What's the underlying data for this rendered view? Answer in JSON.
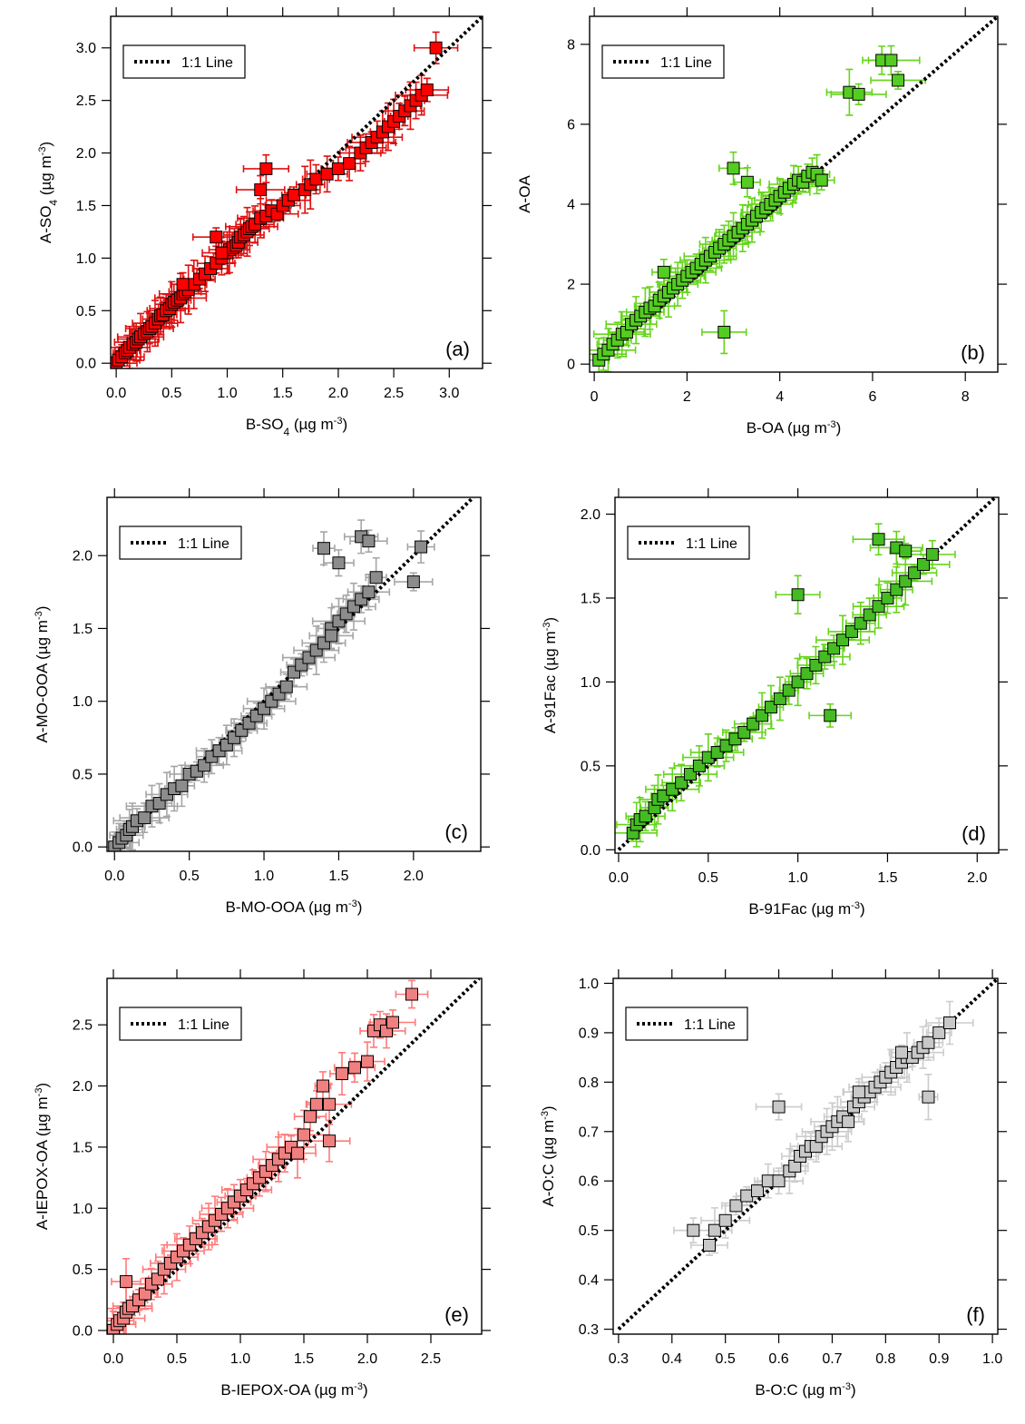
{
  "figure": {
    "legend_label": "1:1 Line"
  },
  "chart_data": [
    {
      "type": "scatter",
      "panel": "(a)",
      "xlabel": "B-SO4 (µg m-3)",
      "ylabel": "A-SO4 (µg m-3)",
      "xlabel_parts": {
        "prefix": "B-SO",
        "sub": "4",
        "unit": " (µg m",
        "sup": "-3",
        "close": ")"
      },
      "ylabel_parts": {
        "prefix": "A-SO",
        "sub": "4",
        "unit": " (µg m",
        "sup": "-3",
        "close": ")"
      },
      "xlim": [
        -0.05,
        3.3
      ],
      "ylim": [
        -0.05,
        3.3
      ],
      "xticks": [
        0.0,
        0.5,
        1.0,
        1.5,
        2.0,
        2.5,
        3.0
      ],
      "yticks": [
        0.0,
        0.5,
        1.0,
        1.5,
        2.0,
        2.5,
        3.0
      ],
      "tick_decimals": 1,
      "color": "#ff0000",
      "errcolor": "#e01010",
      "legend": "top-left",
      "grid": false,
      "x": [
        0.0,
        0.02,
        0.05,
        0.08,
        0.1,
        0.12,
        0.15,
        0.18,
        0.2,
        0.22,
        0.25,
        0.28,
        0.3,
        0.32,
        0.35,
        0.38,
        0.4,
        0.42,
        0.45,
        0.48,
        0.5,
        0.52,
        0.55,
        0.58,
        0.6,
        0.62,
        0.65,
        0.7,
        0.75,
        0.8,
        0.85,
        0.9,
        0.95,
        1.0,
        1.02,
        1.05,
        1.08,
        1.1,
        1.12,
        1.15,
        1.18,
        1.2,
        1.22,
        1.25,
        1.3,
        1.35,
        1.4,
        1.45,
        1.5,
        1.55,
        1.6,
        1.7,
        1.75,
        1.8,
        1.9,
        2.0,
        2.1,
        2.2,
        2.25,
        2.3,
        2.35,
        2.4,
        2.45,
        2.5,
        2.55,
        2.6,
        2.65,
        2.7,
        2.75,
        2.8,
        1.35,
        1.3,
        0.6,
        0.9,
        0.95,
        2.88
      ],
      "y": [
        0.0,
        0.03,
        0.06,
        0.1,
        0.12,
        0.15,
        0.18,
        0.2,
        0.23,
        0.25,
        0.28,
        0.3,
        0.33,
        0.35,
        0.38,
        0.42,
        0.45,
        0.46,
        0.5,
        0.52,
        0.56,
        0.58,
        0.6,
        0.62,
        0.66,
        0.68,
        0.7,
        0.75,
        0.8,
        0.85,
        0.9,
        0.95,
        1.0,
        1.05,
        1.08,
        1.1,
        1.12,
        1.15,
        1.2,
        1.22,
        1.25,
        1.28,
        1.3,
        1.32,
        1.38,
        1.4,
        1.45,
        1.42,
        1.5,
        1.55,
        1.6,
        1.65,
        1.7,
        1.75,
        1.8,
        1.85,
        1.9,
        2.0,
        2.05,
        2.1,
        2.15,
        2.2,
        2.25,
        2.3,
        2.35,
        2.4,
        2.45,
        2.5,
        2.55,
        2.6,
        1.85,
        1.65,
        0.75,
        1.2,
        1.05,
        3.0
      ]
    },
    {
      "type": "scatter",
      "panel": "(b)",
      "xlabel": "B-OA (µg m-3)",
      "ylabel": "A-OA",
      "xlabel_parts": {
        "prefix": "B-OA",
        "sub": "",
        "unit": " (µg m",
        "sup": "-3",
        "close": ")"
      },
      "ylabel_parts": {
        "prefix": "A-OA",
        "sub": "",
        "unit": "",
        "sup": "",
        "close": ""
      },
      "xlim": [
        -0.1,
        8.7
      ],
      "ylim": [
        -0.2,
        8.7
      ],
      "xticks": [
        0,
        2,
        4,
        6,
        8
      ],
      "yticks": [
        0,
        2,
        4,
        6,
        8
      ],
      "tick_decimals": 0,
      "color": "#55cc22",
      "errcolor": "#66d41c",
      "legend": "top-left",
      "grid": false,
      "x": [
        0.1,
        0.2,
        0.3,
        0.4,
        0.5,
        0.6,
        0.7,
        0.8,
        0.9,
        1.0,
        1.1,
        1.2,
        1.3,
        1.4,
        1.5,
        1.6,
        1.7,
        1.8,
        1.9,
        2.0,
        2.1,
        2.2,
        2.3,
        2.4,
        2.5,
        2.6,
        2.7,
        2.8,
        2.9,
        3.0,
        3.1,
        3.2,
        3.3,
        3.4,
        3.5,
        3.6,
        3.7,
        3.8,
        3.9,
        4.0,
        4.1,
        4.2,
        4.3,
        4.4,
        4.5,
        4.6,
        4.7,
        4.8,
        4.9,
        3.0,
        3.3,
        2.8,
        1.5,
        5.5,
        5.7,
        6.2,
        6.4,
        6.55
      ],
      "y": [
        0.1,
        0.25,
        0.35,
        0.5,
        0.6,
        0.75,
        0.8,
        1.0,
        1.1,
        1.2,
        1.3,
        1.4,
        1.45,
        1.6,
        1.7,
        1.8,
        1.9,
        2.0,
        2.1,
        2.2,
        2.3,
        2.4,
        2.5,
        2.6,
        2.7,
        2.8,
        2.9,
        3.0,
        3.1,
        3.2,
        3.3,
        3.4,
        3.5,
        3.6,
        3.7,
        3.8,
        3.9,
        4.0,
        4.1,
        4.2,
        4.3,
        4.4,
        4.5,
        4.6,
        4.55,
        4.7,
        4.8,
        4.75,
        4.6,
        4.9,
        4.55,
        0.8,
        2.3,
        6.8,
        6.75,
        7.6,
        7.6,
        7.1
      ]
    },
    {
      "type": "scatter",
      "panel": "(c)",
      "xlabel": "B-MO-OOA (µg m-3)",
      "ylabel": "A-MO-OOA (µg m-3)",
      "xlabel_parts": {
        "prefix": "B-MO-OOA",
        "sub": "",
        "unit": " (µg m",
        "sup": "-3",
        "close": ")"
      },
      "ylabel_parts": {
        "prefix": "A-MO-OOA",
        "sub": "",
        "unit": " (µg m",
        "sup": "-3",
        "close": ")"
      },
      "xlim": [
        -0.05,
        2.45
      ],
      "ylim": [
        -0.03,
        2.4
      ],
      "xticks": [
        0.0,
        0.5,
        1.0,
        1.5,
        2.0
      ],
      "yticks": [
        0.0,
        0.5,
        1.0,
        1.5,
        2.0
      ],
      "tick_decimals": 1,
      "color": "#8c8c8c",
      "errcolor": "#a6a6a6",
      "legend": "top-left",
      "grid": false,
      "x": [
        0.0,
        0.03,
        0.05,
        0.08,
        0.1,
        0.12,
        0.15,
        0.2,
        0.25,
        0.3,
        0.35,
        0.4,
        0.45,
        0.5,
        0.55,
        0.6,
        0.65,
        0.7,
        0.75,
        0.8,
        0.85,
        0.9,
        0.95,
        1.0,
        1.05,
        1.1,
        1.15,
        1.2,
        1.25,
        1.3,
        1.35,
        1.4,
        1.45,
        1.5,
        1.55,
        1.6,
        1.65,
        1.7,
        1.75,
        1.4,
        1.5,
        1.65,
        1.7,
        2.0,
        2.05,
        1.45
      ],
      "y": [
        0.0,
        0.03,
        0.06,
        0.08,
        0.12,
        0.14,
        0.18,
        0.2,
        0.28,
        0.3,
        0.36,
        0.4,
        0.42,
        0.5,
        0.52,
        0.56,
        0.62,
        0.66,
        0.7,
        0.75,
        0.8,
        0.85,
        0.9,
        0.95,
        1.0,
        1.05,
        1.1,
        1.2,
        1.25,
        1.3,
        1.35,
        1.4,
        1.5,
        1.55,
        1.6,
        1.65,
        1.7,
        1.75,
        1.85,
        2.05,
        1.95,
        2.13,
        2.1,
        1.82,
        2.06,
        1.45
      ]
    },
    {
      "type": "scatter",
      "panel": "(d)",
      "xlabel": "B-91Fac (µg m-3)",
      "ylabel": "A-91Fac (µg m-3)",
      "xlabel_parts": {
        "prefix": "B-91Fac",
        "sub": "",
        "unit": " (µg m",
        "sup": "-3",
        "close": ")"
      },
      "ylabel_parts": {
        "prefix": "A-91Fac",
        "sub": "",
        "unit": " (µg m",
        "sup": "-3",
        "close": ")"
      },
      "xlim": [
        -0.02,
        2.12
      ],
      "ylim": [
        -0.02,
        2.1
      ],
      "xticks": [
        0.0,
        0.5,
        1.0,
        1.5,
        2.0
      ],
      "yticks": [
        0.0,
        0.5,
        1.0,
        1.5,
        2.0
      ],
      "tick_decimals": 1,
      "color": "#44bb22",
      "errcolor": "#66d41c",
      "legend": "top-left",
      "grid": false,
      "x": [
        0.08,
        0.1,
        0.12,
        0.15,
        0.2,
        0.22,
        0.25,
        0.3,
        0.35,
        0.4,
        0.45,
        0.5,
        0.55,
        0.6,
        0.65,
        0.7,
        0.75,
        0.8,
        0.85,
        0.9,
        0.95,
        1.0,
        1.05,
        1.1,
        1.15,
        1.2,
        1.25,
        1.3,
        1.35,
        1.4,
        1.45,
        1.5,
        1.55,
        1.6,
        1.65,
        1.7,
        1.75,
        1.0,
        1.18,
        1.45,
        1.55,
        1.6
      ],
      "y": [
        0.1,
        0.15,
        0.18,
        0.2,
        0.25,
        0.3,
        0.32,
        0.36,
        0.4,
        0.45,
        0.5,
        0.55,
        0.58,
        0.62,
        0.66,
        0.7,
        0.75,
        0.8,
        0.85,
        0.9,
        0.95,
        1.0,
        1.05,
        1.1,
        1.15,
        1.2,
        1.25,
        1.3,
        1.35,
        1.4,
        1.45,
        1.5,
        1.55,
        1.6,
        1.65,
        1.7,
        1.76,
        1.52,
        0.8,
        1.85,
        1.8,
        1.78
      ]
    },
    {
      "type": "scatter",
      "panel": "(e)",
      "xlabel": "B-IEPOX-OA (µg m-3)",
      "ylabel": "A-IEPOX-OA (µg m-3)",
      "xlabel_parts": {
        "prefix": "B-IEPOX-OA",
        "sub": "",
        "unit": " (µg m",
        "sup": "-3",
        "close": ")"
      },
      "ylabel_parts": {
        "prefix": "A-IEPOX-OA",
        "sub": "",
        "unit": " (µg m",
        "sup": "-3",
        "close": ")"
      },
      "xlim": [
        -0.05,
        2.9
      ],
      "ylim": [
        -0.03,
        2.88
      ],
      "xticks": [
        0.0,
        0.5,
        1.0,
        1.5,
        2.0,
        2.5
      ],
      "yticks": [
        0.0,
        0.5,
        1.0,
        1.5,
        2.0,
        2.5
      ],
      "tick_decimals": 1,
      "color": "#f08080",
      "errcolor": "#ff7a7a",
      "legend": "top-left",
      "grid": false,
      "x": [
        0.0,
        0.03,
        0.05,
        0.08,
        0.1,
        0.12,
        0.15,
        0.2,
        0.25,
        0.3,
        0.35,
        0.4,
        0.45,
        0.5,
        0.55,
        0.6,
        0.65,
        0.7,
        0.75,
        0.8,
        0.85,
        0.9,
        0.95,
        1.0,
        1.05,
        1.1,
        1.15,
        1.2,
        1.25,
        1.3,
        1.35,
        1.4,
        1.45,
        1.5,
        1.55,
        1.6,
        1.65,
        1.7,
        1.8,
        1.9,
        2.0,
        2.05,
        2.1,
        2.15,
        2.2,
        2.35,
        0.1,
        1.7
      ],
      "y": [
        0.0,
        0.05,
        0.08,
        0.1,
        0.15,
        0.18,
        0.2,
        0.25,
        0.3,
        0.38,
        0.42,
        0.5,
        0.55,
        0.6,
        0.65,
        0.7,
        0.75,
        0.8,
        0.85,
        0.9,
        0.95,
        1.0,
        1.05,
        1.1,
        1.15,
        1.2,
        1.25,
        1.3,
        1.35,
        1.4,
        1.45,
        1.5,
        1.45,
        1.6,
        1.75,
        1.85,
        2.0,
        1.85,
        2.1,
        2.15,
        2.2,
        2.45,
        2.5,
        2.45,
        2.52,
        2.75,
        0.4,
        1.55
      ]
    },
    {
      "type": "scatter",
      "panel": "(f)",
      "xlabel": "B-O:C (µg m-3)",
      "ylabel": "A-O:C (µg m-3)",
      "xlabel_parts": {
        "prefix": "B-O:C",
        "sub": "",
        "unit": " (µg m",
        "sup": "-3",
        "close": ")"
      },
      "ylabel_parts": {
        "prefix": "A-O:C",
        "sub": "",
        "unit": " (µg m",
        "sup": "-3",
        "close": ")"
      },
      "xlim": [
        0.29,
        1.01
      ],
      "ylim": [
        0.29,
        1.01
      ],
      "xticks": [
        0.3,
        0.4,
        0.5,
        0.6,
        0.7,
        0.8,
        0.9,
        1.0
      ],
      "yticks": [
        0.3,
        0.4,
        0.5,
        0.6,
        0.7,
        0.8,
        0.9,
        1.0
      ],
      "tick_decimals": 1,
      "color": "#c8c8c8",
      "errcolor": "#cccccc",
      "legend": "top-left",
      "grid": false,
      "x": [
        0.44,
        0.47,
        0.48,
        0.5,
        0.52,
        0.54,
        0.56,
        0.58,
        0.6,
        0.62,
        0.63,
        0.64,
        0.65,
        0.66,
        0.67,
        0.68,
        0.69,
        0.7,
        0.71,
        0.72,
        0.73,
        0.74,
        0.75,
        0.76,
        0.77,
        0.78,
        0.79,
        0.8,
        0.81,
        0.82,
        0.83,
        0.84,
        0.85,
        0.86,
        0.87,
        0.88,
        0.9,
        0.92,
        0.6,
        0.75,
        0.88,
        0.83
      ],
      "y": [
        0.5,
        0.47,
        0.5,
        0.52,
        0.55,
        0.57,
        0.58,
        0.6,
        0.6,
        0.62,
        0.63,
        0.65,
        0.66,
        0.67,
        0.67,
        0.69,
        0.7,
        0.71,
        0.72,
        0.73,
        0.72,
        0.75,
        0.76,
        0.77,
        0.78,
        0.79,
        0.8,
        0.81,
        0.82,
        0.83,
        0.84,
        0.85,
        0.85,
        0.86,
        0.87,
        0.88,
        0.9,
        0.92,
        0.75,
        0.78,
        0.77,
        0.86
      ]
    }
  ]
}
